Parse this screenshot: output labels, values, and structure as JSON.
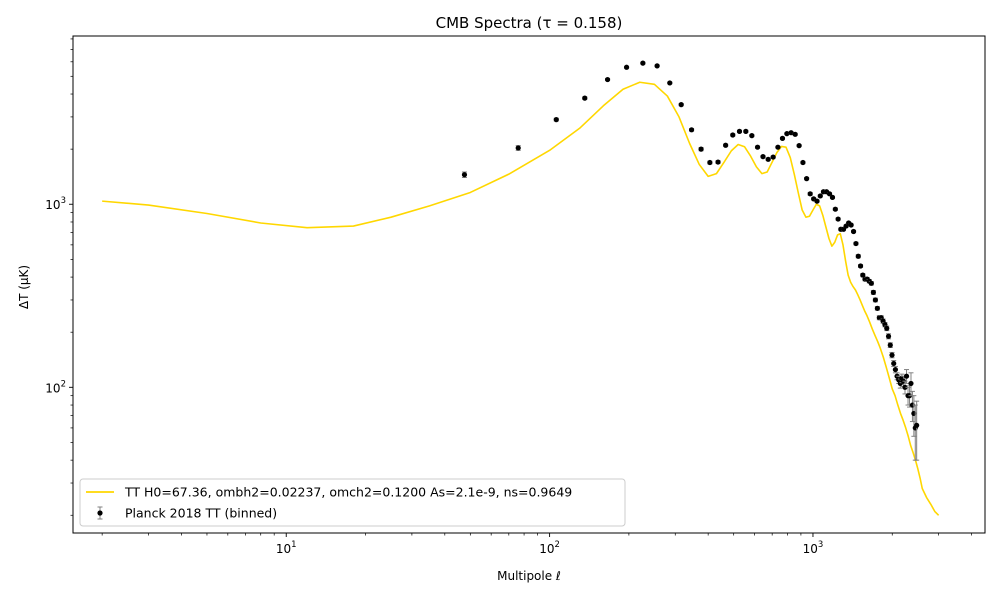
{
  "chart_data": {
    "type": "line",
    "title": "CMB Spectra (τ = 0.158)",
    "xlabel": "Multipole ℓ",
    "ylabel": "ΔT (μK)",
    "xscale": "log",
    "yscale": "log",
    "xlim": [
      1.55,
      4500
    ],
    "ylim": [
      16,
      8300
    ],
    "x_ticks": [
      {
        "value": 10,
        "base": "10",
        "exp": "1"
      },
      {
        "value": 100,
        "base": "10",
        "exp": "2"
      },
      {
        "value": 1000,
        "base": "10",
        "exp": "3"
      }
    ],
    "y_ticks": [
      {
        "value": 100,
        "base": "10",
        "exp": "2"
      },
      {
        "value": 1000,
        "base": "10",
        "exp": "3"
      }
    ],
    "grid": false,
    "legend_position": "lower-left",
    "series": [
      {
        "name": "TT H0=67.36, ombh2=0.02237, omch2=0.1200 As=2.1e-9, ns=0.9649",
        "kind": "line",
        "color": "#FFD700",
        "x": [
          2,
          3,
          5,
          8,
          12,
          18,
          25,
          35,
          50,
          70,
          100,
          130,
          160,
          190,
          220,
          250,
          280,
          310,
          340,
          370,
          400,
          430,
          460,
          490,
          520,
          550,
          580,
          610,
          640,
          670,
          700,
          730,
          760,
          790,
          820,
          850,
          880,
          910,
          940,
          970,
          1000,
          1030,
          1060,
          1090,
          1120,
          1150,
          1180,
          1210,
          1240,
          1270,
          1300,
          1330,
          1360,
          1390,
          1420,
          1450,
          1480,
          1510,
          1540,
          1570,
          1600,
          1640,
          1680,
          1720,
          1760,
          1800,
          1850,
          1900,
          1950,
          2000,
          2050,
          2100,
          2150,
          2200,
          2250,
          2300,
          2350,
          2400,
          2450,
          2500,
          2550,
          2600,
          2700,
          2800,
          2900,
          3000
        ],
        "y": [
          1040,
          990,
          890,
          790,
          745,
          760,
          850,
          980,
          1160,
          1460,
          1970,
          2600,
          3450,
          4250,
          4640,
          4520,
          3900,
          3000,
          2150,
          1650,
          1420,
          1470,
          1700,
          1960,
          2120,
          2060,
          1830,
          1600,
          1470,
          1500,
          1700,
          1920,
          2070,
          2050,
          1800,
          1450,
          1150,
          930,
          850,
          860,
          930,
          1000,
          980,
          870,
          750,
          650,
          590,
          620,
          680,
          690,
          600,
          490,
          410,
          375,
          355,
          340,
          320,
          300,
          280,
          262,
          248,
          228,
          208,
          192,
          178,
          164,
          146,
          128,
          112,
          98,
          90,
          80,
          72,
          66,
          60,
          54,
          48,
          44,
          40,
          36,
          32,
          28,
          25,
          23,
          21,
          20
        ]
      },
      {
        "name": "Planck 2018 TT (binned)",
        "kind": "errorbar",
        "color": "#000000",
        "ecolor": "#808080",
        "x": [
          47.5,
          76,
          106,
          136,
          166,
          196,
          226,
          256,
          286,
          316,
          346,
          376,
          406,
          436,
          466,
          496,
          526,
          556,
          586,
          616,
          646,
          676,
          706,
          736,
          766,
          796,
          826,
          856,
          886,
          916,
          946,
          976,
          1006,
          1036,
          1066,
          1096,
          1126,
          1156,
          1186,
          1216,
          1246,
          1276,
          1306,
          1336,
          1366,
          1396,
          1426,
          1456,
          1486,
          1516,
          1546,
          1576,
          1606,
          1636,
          1666,
          1696,
          1726,
          1756,
          1786,
          1816,
          1846,
          1876,
          1906,
          1936,
          1966,
          1996,
          2026,
          2056,
          2086,
          2116,
          2146,
          2176,
          2206,
          2236,
          2266,
          2296,
          2326,
          2356,
          2386,
          2416,
          2446,
          2476
        ],
        "y": [
          1450,
          2030,
          2900,
          3800,
          4800,
          5600,
          5900,
          5700,
          4600,
          3500,
          2550,
          2000,
          1690,
          1700,
          2100,
          2390,
          2500,
          2500,
          2370,
          2050,
          1820,
          1760,
          1810,
          2050,
          2290,
          2430,
          2460,
          2410,
          2090,
          1690,
          1380,
          1140,
          1070,
          1040,
          1110,
          1170,
          1170,
          1140,
          1090,
          940,
          830,
          730,
          730,
          760,
          790,
          770,
          710,
          610,
          520,
          460,
          410,
          390,
          390,
          380,
          370,
          330,
          300,
          270,
          240,
          240,
          230,
          220,
          210,
          190,
          170,
          150,
          135,
          125,
          115,
          110,
          105,
          112,
          108,
          100,
          115,
          90,
          90,
          105,
          80,
          72,
          60,
          62
        ],
        "err": [
          50,
          60,
          50,
          60,
          60,
          70,
          70,
          60,
          50,
          50,
          40,
          40,
          30,
          30,
          30,
          35,
          35,
          35,
          30,
          30,
          25,
          25,
          25,
          25,
          30,
          30,
          30,
          30,
          25,
          25,
          20,
          20,
          15,
          15,
          15,
          15,
          15,
          15,
          15,
          15,
          12,
          12,
          10,
          10,
          10,
          10,
          10,
          10,
          10,
          8,
          8,
          8,
          8,
          8,
          8,
          8,
          7,
          6,
          6,
          6,
          6,
          6,
          6,
          6,
          5,
          5,
          5,
          5,
          5,
          5,
          6,
          6,
          7,
          8,
          10,
          10,
          12,
          15,
          15,
          18,
          20,
          22
        ]
      }
    ]
  }
}
